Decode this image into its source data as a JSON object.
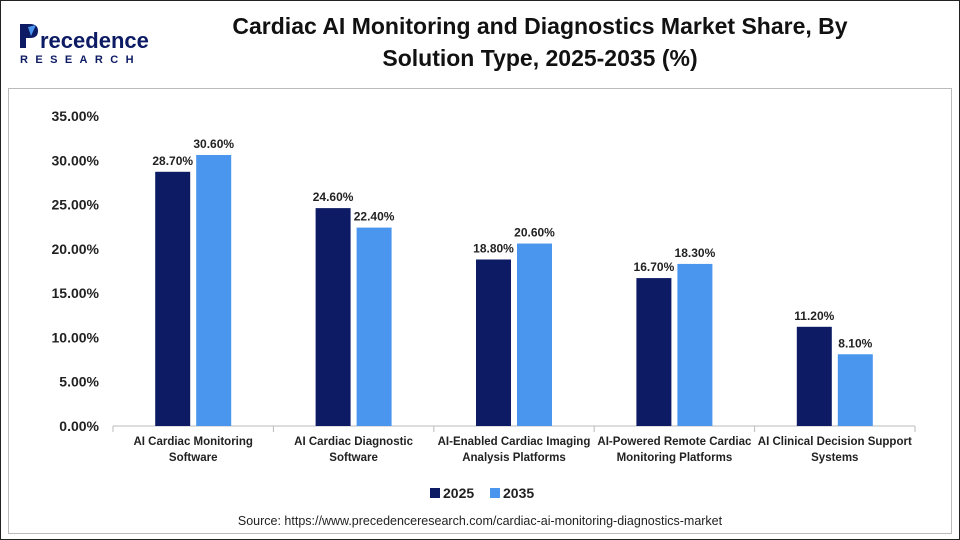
{
  "header": {
    "logo_text": "Precedence",
    "logo_subtext": "RESEARCH",
    "title": "Cardiac AI Monitoring and Diagnostics Market  Share, By Solution Type, 2025-2035 (%)"
  },
  "chart_data": {
    "type": "bar",
    "categories": [
      [
        "AI Cardiac Monitoring",
        "Software"
      ],
      [
        "AI Cardiac Diagnostic",
        "Software"
      ],
      [
        "AI-Enabled Cardiac Imaging",
        "Analysis Platforms"
      ],
      [
        "AI-Powered Remote Cardiac",
        "Monitoring Platforms"
      ],
      [
        "AI Clinical Decision Support",
        "Systems"
      ]
    ],
    "series": [
      {
        "name": "2025",
        "color": "#0c1b64",
        "values": [
          28.7,
          24.6,
          18.8,
          16.7,
          11.2
        ]
      },
      {
        "name": "2035",
        "color": "#4a95ee",
        "values": [
          30.6,
          22.4,
          20.6,
          18.3,
          8.1
        ]
      }
    ],
    "ylim": [
      0,
      35
    ],
    "yticks": [
      "0.00%",
      "5.00%",
      "10.00%",
      "15.00%",
      "20.00%",
      "25.00%",
      "30.00%",
      "35.00%"
    ],
    "legend_position": "bottom",
    "grid": false,
    "source": "Source: https://www.precedenceresearch.com/cardiac-ai-monitoring-diagnostics-market"
  }
}
